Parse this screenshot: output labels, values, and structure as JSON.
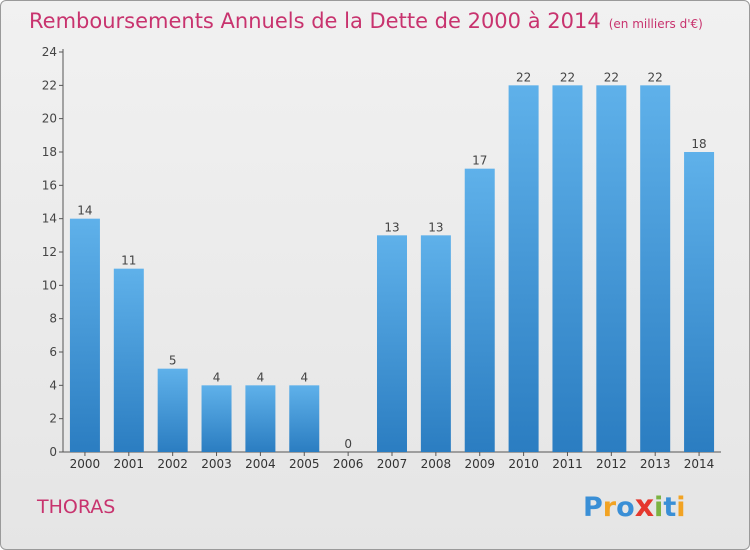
{
  "header": {
    "title": "Remboursements Annuels de la Dette de 2000 à 2014",
    "unit": "(en milliers d'€)"
  },
  "footer": {
    "commune": "THORAS",
    "logo_text": "Proxiti"
  },
  "colors": {
    "title": "#c8336e",
    "bar_top": "#5fb1ea",
    "bar_bottom": "#2b7dc1",
    "logo": [
      "#3a8fd6",
      "#f2a323",
      "#3a8fd6",
      "#e5382e",
      "#7cb342",
      "#3a8fd6",
      "#f2a323"
    ]
  },
  "chart_data": {
    "type": "bar",
    "categories": [
      "2000",
      "2001",
      "2002",
      "2003",
      "2004",
      "2005",
      "2006",
      "2007",
      "2008",
      "2009",
      "2010",
      "2011",
      "2012",
      "2013",
      "2014"
    ],
    "values": [
      14,
      11,
      5,
      4,
      4,
      4,
      0,
      13,
      13,
      17,
      22,
      22,
      22,
      22,
      18
    ],
    "ylim": [
      0,
      24
    ],
    "yticks": [
      0,
      2,
      4,
      6,
      8,
      10,
      12,
      14,
      16,
      18,
      20,
      22,
      24
    ],
    "grid": false
  }
}
